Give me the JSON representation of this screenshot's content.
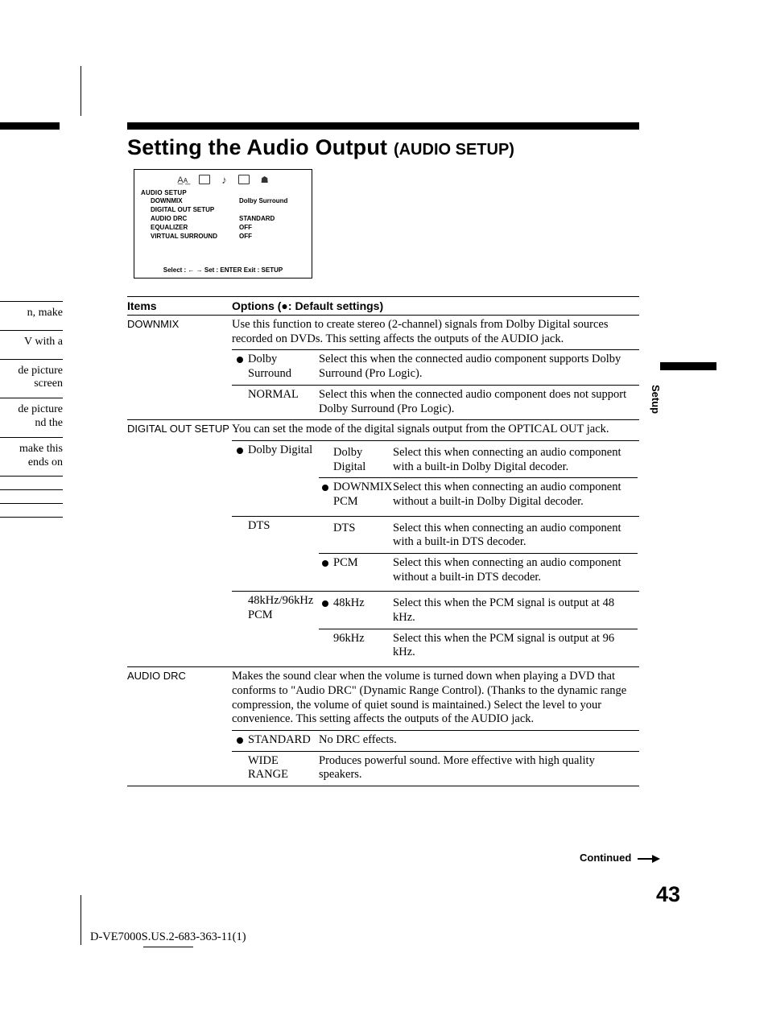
{
  "page_number": "43",
  "doc_id": "D-VE7000S.US.2-683-363-11(1)",
  "side_label": "Setup",
  "continued_label": "Continued",
  "heading": {
    "big": "Setting the Audio Output ",
    "small": "(AUDIO SETUP)"
  },
  "osd": {
    "title": "AUDIO SETUP",
    "foot": "Select :  ←  →   Set : ENTER  Exit : SETUP",
    "rows": [
      {
        "label": "DOWNMIX",
        "value": "Dolby Surround"
      },
      {
        "label": "DIGITAL OUT SETUP",
        "value": ""
      },
      {
        "label": "AUDIO DRC",
        "value": "STANDARD"
      },
      {
        "label": "EQUALIZER",
        "value": "OFF"
      },
      {
        "label": "VIRTUAL SURROUND",
        "value": "OFF"
      }
    ]
  },
  "table": {
    "head_items": "Items",
    "head_options": "Options (●: Default settings)",
    "rows": [
      {
        "item": "DOWNMIX",
        "intro": "Use this function to create stereo (2-channel) signals from Dolby Digital sources recorded on DVDs. This setting affects the outputs of the AUDIO jack.",
        "subs": [
          {
            "opt": "Dolby Surround",
            "default": true,
            "desc": "Select this when the connected audio component supports Dolby Surround (Pro Logic)."
          },
          {
            "opt": "NORMAL",
            "default": false,
            "desc": "Select this when the connected audio component does not support Dolby Surround (Pro Logic)."
          }
        ]
      },
      {
        "item": "DIGITAL OUT SETUP",
        "intro": "You can set the mode of the digital signals output from the OPTICAL OUT jack.",
        "subs": [
          {
            "opt": "Dolby Digital",
            "default": true,
            "subsubs": [
              {
                "k": "Dolby Digital",
                "default": false,
                "v": "Select this when connecting an audio component with a built-in Dolby Digital decoder."
              },
              {
                "k": "DOWNMIX PCM",
                "default": true,
                "v": "Select this when connecting an audio component without a built-in Dolby Digital decoder."
              }
            ]
          },
          {
            "opt": "DTS",
            "default": false,
            "subsubs": [
              {
                "k": "DTS",
                "default": false,
                "v": "Select this when connecting an audio component with a built-in DTS decoder."
              },
              {
                "k": "PCM",
                "default": true,
                "v": "Select this when connecting an audio component without a built-in DTS decoder."
              }
            ]
          },
          {
            "opt": "48kHz/96kHz PCM",
            "default": false,
            "subsubs": [
              {
                "k": "48kHz",
                "default": true,
                "v": "Select this when the PCM signal is output at 48 kHz."
              },
              {
                "k": "96kHz",
                "default": false,
                "v": "Select this when the PCM signal is output at 96 kHz."
              }
            ]
          }
        ]
      },
      {
        "item": "AUDIO DRC",
        "intro": "Makes the sound clear when the volume is turned down when playing a DVD that conforms to \"Audio DRC\" (Dynamic Range Control). (Thanks to the dynamic range compression, the volume of quiet sound is maintained.) Select the level to your convenience. This setting affects the outputs of the AUDIO jack.",
        "subs": [
          {
            "opt": "STANDARD",
            "default": true,
            "desc": "No DRC effects."
          },
          {
            "opt": "WIDE RANGE",
            "default": false,
            "desc": "Produces powerful sound. More effective with high quality speakers."
          }
        ]
      }
    ]
  },
  "left_fragments": [
    "n, make",
    "V with a",
    "de picture\nscreen",
    "de picture\nnd the",
    "make this\nends on"
  ]
}
